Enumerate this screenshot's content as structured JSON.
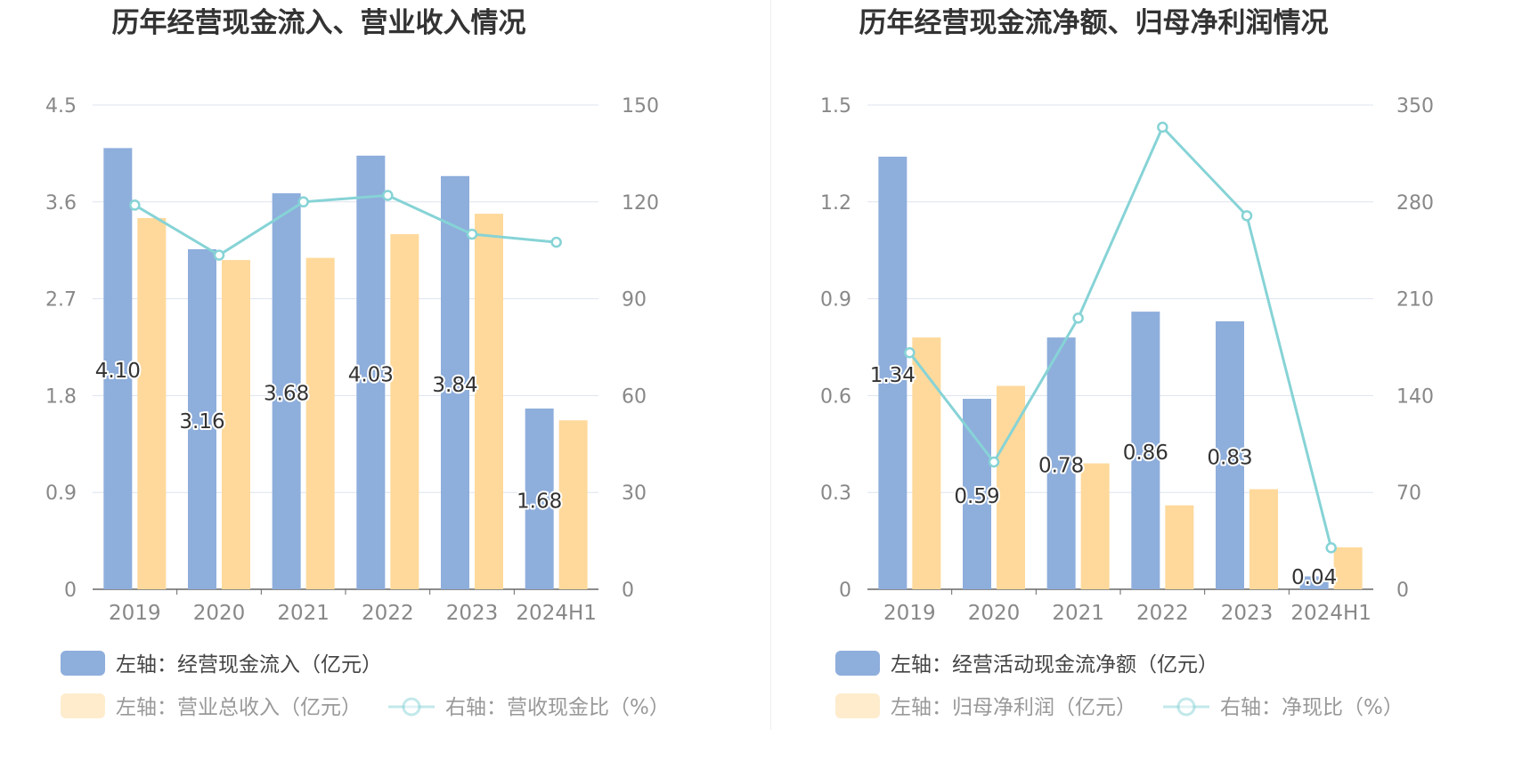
{
  "colors": {
    "bar_primary": "#8eaedc",
    "bar_secondary": "#fed99b",
    "line": "#86d3d6",
    "grid": "#dde3ee",
    "axis": "#666666",
    "tick_text": "#888888",
    "title": "#333333",
    "legend_text": "#444444",
    "legend_text_faded": "#999999"
  },
  "chart_data": [
    {
      "type": "bar",
      "title": "历年经营现金流入、营业收入情况",
      "categories": [
        "2019",
        "2020",
        "2021",
        "2022",
        "2023",
        "2024H1"
      ],
      "left_axis": {
        "ylim": [
          0,
          4.5
        ],
        "ticks": [
          "0",
          "0.9",
          "1.8",
          "2.7",
          "3.6",
          "4.5"
        ]
      },
      "right_axis": {
        "ylim": [
          0,
          150
        ],
        "ticks": [
          "0",
          "30",
          "60",
          "90",
          "120",
          "150"
        ]
      },
      "series": [
        {
          "name": "左轴：经营现金流入（亿元）",
          "kind": "bar",
          "axis": "left",
          "values": [
            4.1,
            3.16,
            3.68,
            4.03,
            3.84,
            1.68
          ],
          "labels": [
            "4.10",
            "3.16",
            "3.68",
            "4.03",
            "3.84",
            "1.68"
          ],
          "color": "#8eaedc"
        },
        {
          "name": "左轴：营业总收入（亿元）",
          "kind": "bar",
          "axis": "left",
          "values": [
            3.45,
            3.06,
            3.08,
            3.3,
            3.49,
            1.57
          ],
          "color": "#fed99b",
          "faded": true
        },
        {
          "name": "右轴：营收现金比（%）",
          "kind": "line",
          "axis": "right",
          "values": [
            119,
            103.5,
            120,
            122,
            110,
            107.5
          ],
          "color": "#86d3d6",
          "faded": true
        }
      ],
      "grid": true,
      "legend_position": "bottom-left"
    },
    {
      "type": "bar",
      "title": "历年经营现金流净额、归母净利润情况",
      "categories": [
        "2019",
        "2020",
        "2021",
        "2022",
        "2023",
        "2024H1"
      ],
      "left_axis": {
        "ylim": [
          0,
          1.5
        ],
        "ticks": [
          "0",
          "0.3",
          "0.6",
          "0.9",
          "1.2",
          "1.5"
        ]
      },
      "right_axis": {
        "ylim": [
          0,
          350
        ],
        "ticks": [
          "0",
          "70",
          "140",
          "210",
          "280",
          "350"
        ]
      },
      "series": [
        {
          "name": "左轴：经营活动现金流净额（亿元）",
          "kind": "bar",
          "axis": "left",
          "values": [
            1.34,
            0.59,
            0.78,
            0.86,
            0.83,
            0.04
          ],
          "labels": [
            "1.34",
            "0.59",
            "0.78",
            "0.86",
            "0.83",
            "0.04"
          ],
          "color": "#8eaedc"
        },
        {
          "name": "左轴：归母净利润（亿元）",
          "kind": "bar",
          "axis": "left",
          "values": [
            0.78,
            0.63,
            0.39,
            0.26,
            0.31,
            0.13
          ],
          "color": "#fed99b",
          "faded": true
        },
        {
          "name": "右轴：净现比（%）",
          "kind": "line",
          "axis": "right",
          "values": [
            171,
            92,
            196,
            334,
            270,
            30
          ],
          "color": "#86d3d6",
          "faded": true
        }
      ],
      "grid": true,
      "legend_position": "bottom-left"
    }
  ]
}
